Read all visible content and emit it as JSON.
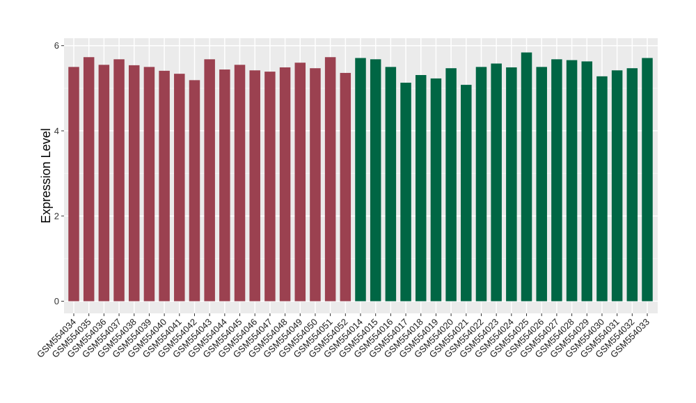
{
  "chart_data": {
    "type": "bar",
    "title": "",
    "xlabel": "",
    "ylabel": "Expression Level",
    "ylim": [
      -0.3,
      6.17
    ],
    "yticks": [
      0,
      2,
      4,
      6
    ],
    "grid": true,
    "categories": [
      "GSM554034",
      "GSM554035",
      "GSM554036",
      "GSM554037",
      "GSM554038",
      "GSM554039",
      "GSM554040",
      "GSM554041",
      "GSM554042",
      "GSM554043",
      "GSM554044",
      "GSM554045",
      "GSM554046",
      "GSM554047",
      "GSM554048",
      "GSM554049",
      "GSM554050",
      "GSM554051",
      "GSM554052",
      "GSM554014",
      "GSM554015",
      "GSM554016",
      "GSM554017",
      "GSM554018",
      "GSM554019",
      "GSM554020",
      "GSM554021",
      "GSM554022",
      "GSM554023",
      "GSM554024",
      "GSM554025",
      "GSM554026",
      "GSM554027",
      "GSM554028",
      "GSM554029",
      "GSM554030",
      "GSM554031",
      "GSM554032",
      "GSM554033"
    ],
    "values": [
      5.5,
      5.73,
      5.55,
      5.68,
      5.54,
      5.5,
      5.41,
      5.34,
      5.19,
      5.68,
      5.44,
      5.55,
      5.42,
      5.39,
      5.49,
      5.6,
      5.47,
      5.73,
      5.36,
      5.71,
      5.68,
      5.5,
      5.13,
      5.31,
      5.23,
      5.47,
      5.08,
      5.5,
      5.58,
      5.49,
      5.84,
      5.5,
      5.68,
      5.66,
      5.63,
      5.28,
      5.42,
      5.47,
      5.71
    ],
    "groups": [
      0,
      0,
      0,
      0,
      0,
      0,
      0,
      0,
      0,
      0,
      0,
      0,
      0,
      0,
      0,
      0,
      0,
      0,
      0,
      1,
      1,
      1,
      1,
      1,
      1,
      1,
      1,
      1,
      1,
      1,
      1,
      1,
      1,
      1,
      1,
      1,
      1,
      1,
      1
    ],
    "group_colors": [
      "#9b4150",
      "#006644"
    ]
  }
}
